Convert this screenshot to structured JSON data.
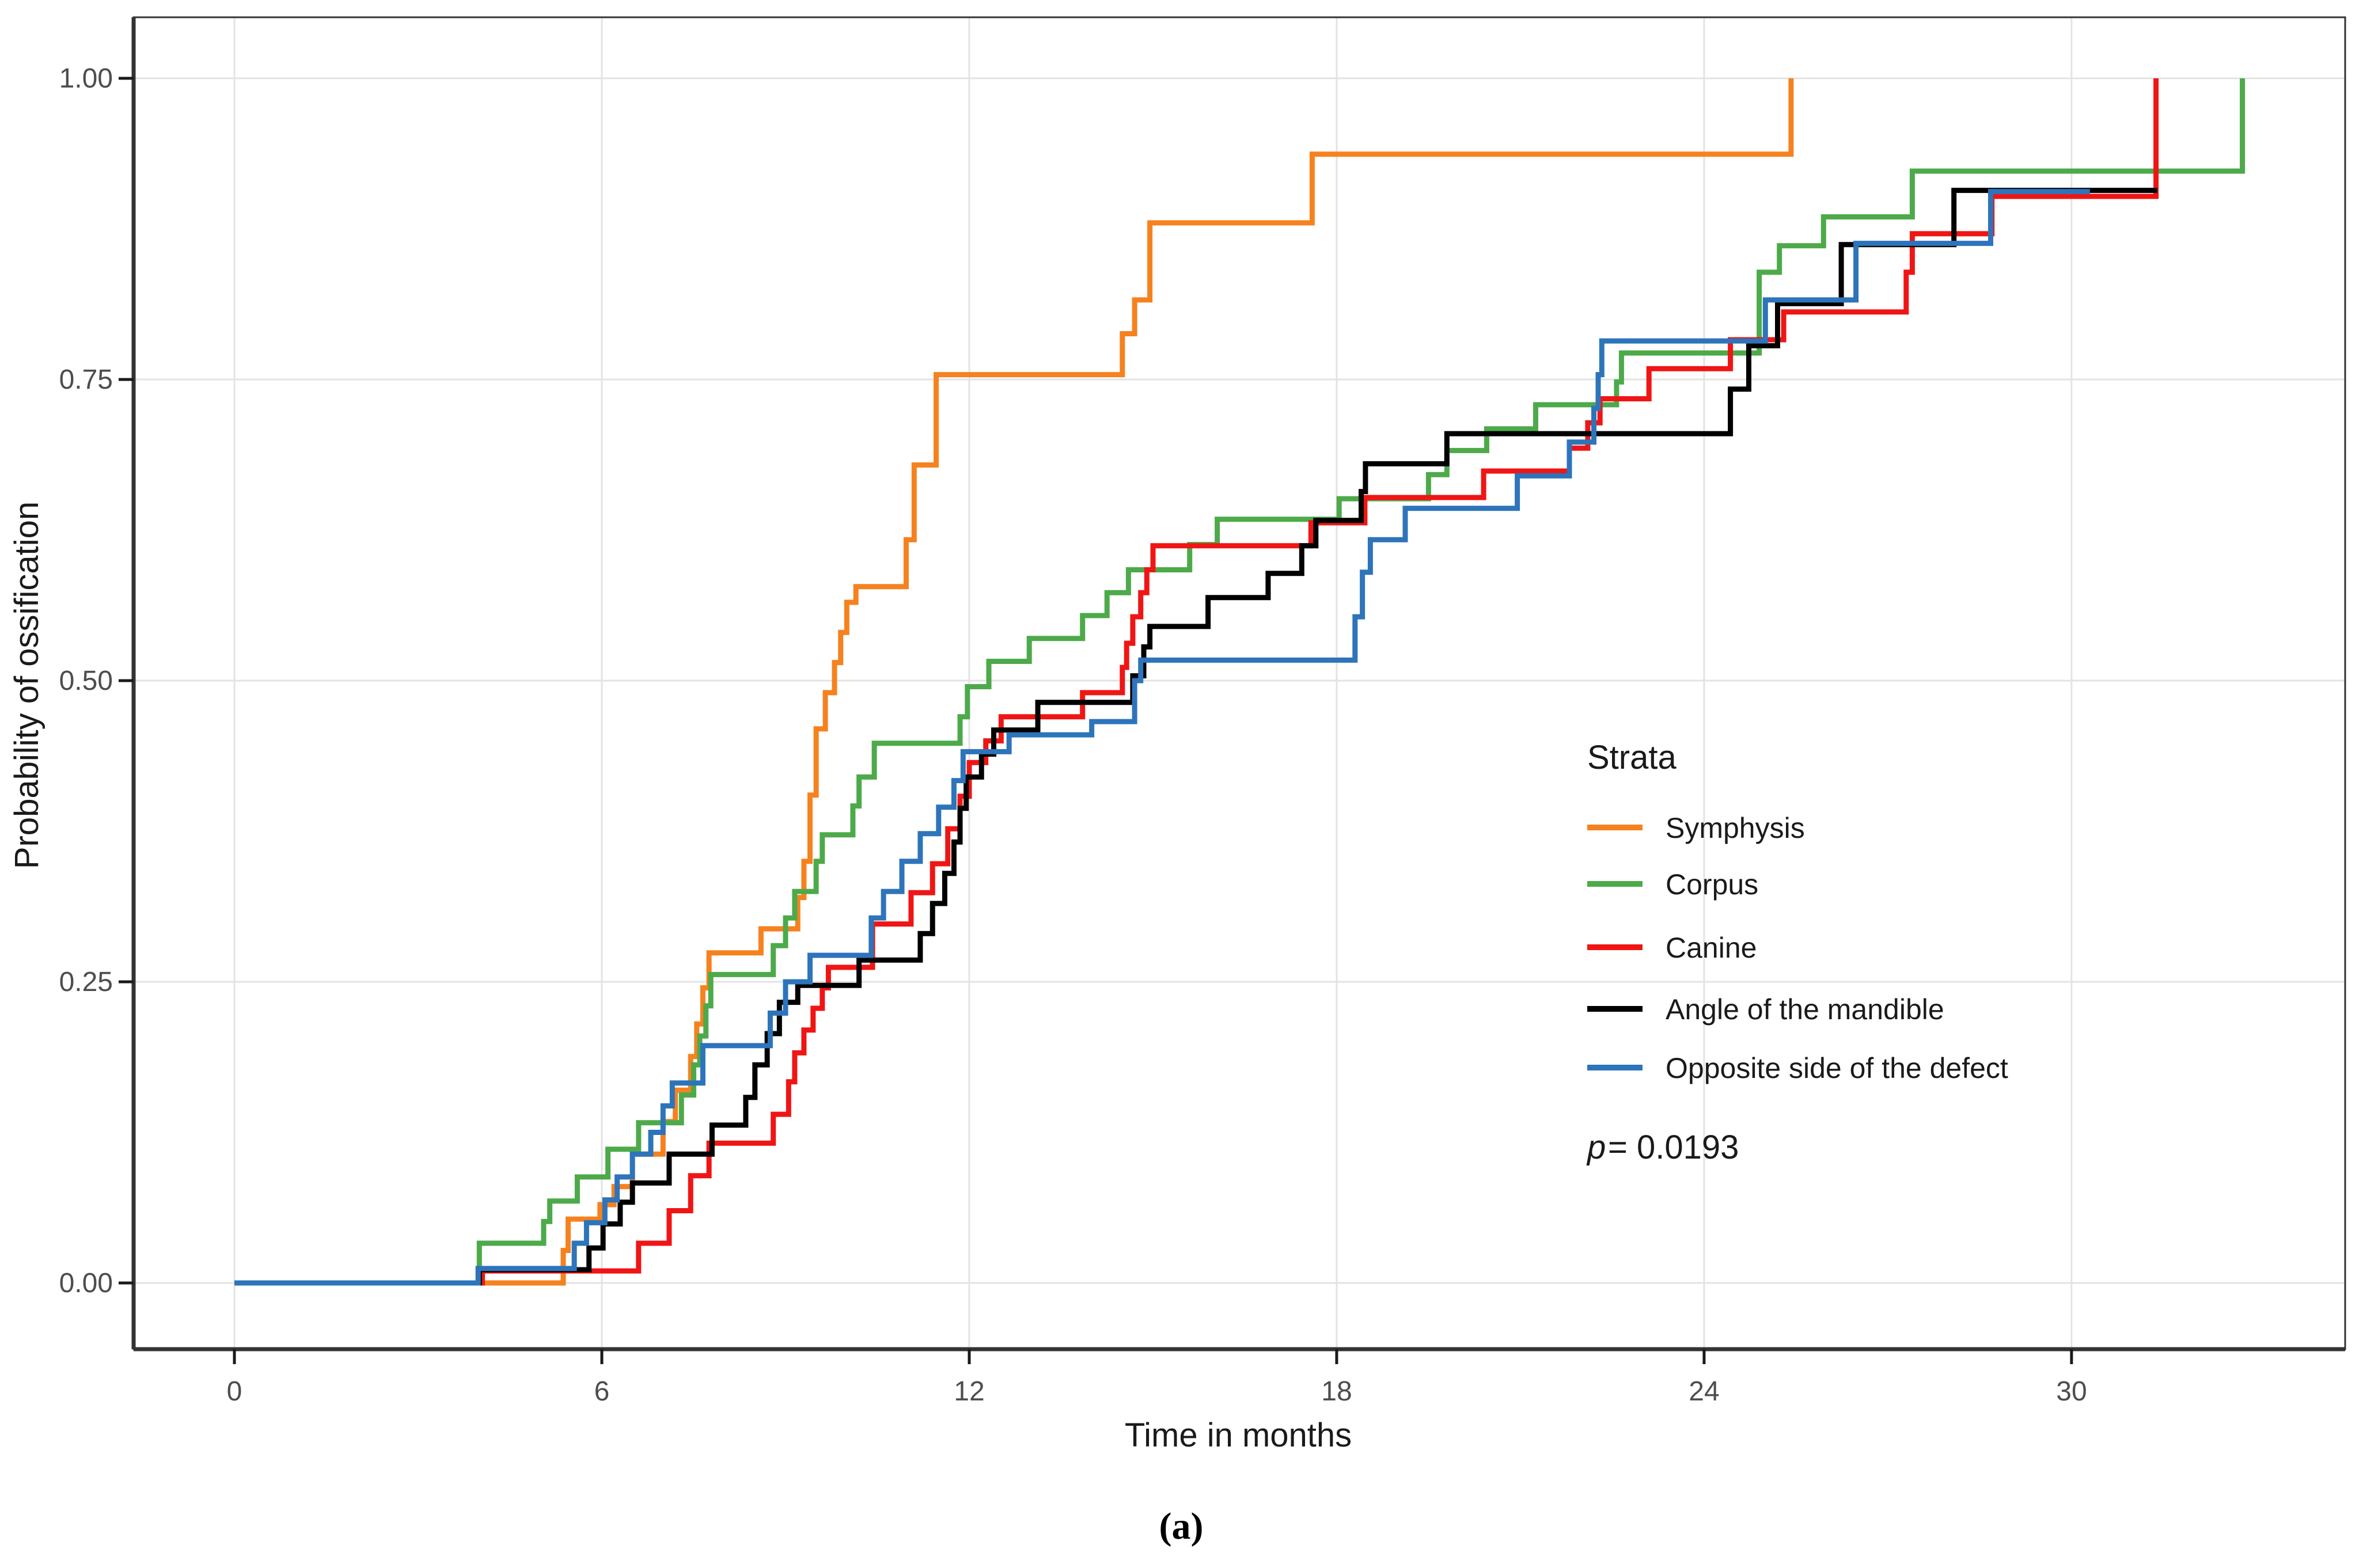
{
  "chart_data": {
    "type": "line",
    "subtype": "kaplan-meier-step",
    "title": "",
    "xlabel": "Time in months",
    "ylabel": "Probability of ossification",
    "xlim": [
      0,
      34.5
    ],
    "ylim": [
      0,
      1.0
    ],
    "x_ticks": [
      "0",
      "6",
      "12",
      "18",
      "24",
      "30"
    ],
    "x_tick_values": [
      0,
      6,
      12,
      18,
      24,
      30
    ],
    "y_ticks": [
      "0.00",
      "0.25",
      "0.50",
      "0.75",
      "1.00"
    ],
    "y_tick_values": [
      0,
      0.25,
      0.5,
      0.75,
      1.0
    ],
    "grid": true,
    "legend_position": "right-center-inside",
    "legend_title": "Strata",
    "p_italic": "p",
    "p_rest": " = 0.0193",
    "p_value_text": "p = 0.0193",
    "caption": "(a)",
    "colors": {
      "symphysis": "#F5821F",
      "corpus": "#4DAA4A",
      "canine": "#F01515",
      "angle": "#000000",
      "opposite": "#2D74BB",
      "grid": "#E3E3E3",
      "axis": "#333333",
      "tick_text": "#4D4D4D"
    },
    "series": [
      {
        "name": "Symphysis",
        "color": "#F5821F",
        "end": 25.42,
        "points": [
          [
            0,
            0
          ],
          [
            5.37,
            0.027
          ],
          [
            5.45,
            0.053
          ],
          [
            5.97,
            0.065
          ],
          [
            6.2,
            0.08
          ],
          [
            6.5,
            0.107
          ],
          [
            7.0,
            0.134
          ],
          [
            7.2,
            0.16
          ],
          [
            7.45,
            0.188
          ],
          [
            7.55,
            0.215
          ],
          [
            7.65,
            0.245
          ],
          [
            7.75,
            0.274
          ],
          [
            8.6,
            0.294
          ],
          [
            9.2,
            0.32
          ],
          [
            9.3,
            0.35
          ],
          [
            9.4,
            0.405
          ],
          [
            9.5,
            0.46
          ],
          [
            9.65,
            0.49
          ],
          [
            9.8,
            0.515
          ],
          [
            9.9,
            0.54
          ],
          [
            10.0,
            0.565
          ],
          [
            10.15,
            0.578
          ],
          [
            10.97,
            0.617
          ],
          [
            11.1,
            0.679
          ],
          [
            11.46,
            0.754
          ],
          [
            14.5,
            0.788
          ],
          [
            14.7,
            0.816
          ],
          [
            14.95,
            0.88
          ],
          [
            17.6,
            0.937
          ],
          [
            25.42,
            1.0
          ]
        ]
      },
      {
        "name": "Corpus",
        "color": "#4DAA4A",
        "end": 32.79,
        "points": [
          [
            0,
            0
          ],
          [
            4.0,
            0.033
          ],
          [
            5.05,
            0.051
          ],
          [
            5.15,
            0.068
          ],
          [
            5.6,
            0.088
          ],
          [
            6.1,
            0.111
          ],
          [
            6.6,
            0.133
          ],
          [
            7.3,
            0.156
          ],
          [
            7.5,
            0.181
          ],
          [
            7.6,
            0.205
          ],
          [
            7.7,
            0.23
          ],
          [
            7.78,
            0.256
          ],
          [
            8.8,
            0.28
          ],
          [
            9.0,
            0.303
          ],
          [
            9.15,
            0.325
          ],
          [
            9.5,
            0.35
          ],
          [
            9.6,
            0.372
          ],
          [
            10.1,
            0.396
          ],
          [
            10.2,
            0.42
          ],
          [
            10.45,
            0.448
          ],
          [
            11.85,
            0.47
          ],
          [
            11.97,
            0.495
          ],
          [
            12.32,
            0.516
          ],
          [
            12.98,
            0.535
          ],
          [
            13.85,
            0.554
          ],
          [
            14.25,
            0.573
          ],
          [
            14.6,
            0.592
          ],
          [
            15.6,
            0.613
          ],
          [
            16.05,
            0.634
          ],
          [
            18.04,
            0.651
          ],
          [
            19.5,
            0.671
          ],
          [
            19.8,
            0.691
          ],
          [
            20.45,
            0.709
          ],
          [
            21.25,
            0.729
          ],
          [
            22.57,
            0.748
          ],
          [
            22.65,
            0.772
          ],
          [
            24.9,
            0.839
          ],
          [
            25.23,
            0.861
          ],
          [
            25.95,
            0.885
          ],
          [
            27.4,
            0.923
          ],
          [
            32.79,
            1.0
          ]
        ]
      },
      {
        "name": "Canine",
        "color": "#F01515",
        "end": 31.38,
        "points": [
          [
            0,
            0
          ],
          [
            4.05,
            0.01
          ],
          [
            6.6,
            0.033
          ],
          [
            7.1,
            0.06
          ],
          [
            7.45,
            0.089
          ],
          [
            7.75,
            0.116
          ],
          [
            8.8,
            0.14
          ],
          [
            9.05,
            0.167
          ],
          [
            9.15,
            0.191
          ],
          [
            9.3,
            0.21
          ],
          [
            9.45,
            0.228
          ],
          [
            9.6,
            0.245
          ],
          [
            9.7,
            0.262
          ],
          [
            10.42,
            0.298
          ],
          [
            11.05,
            0.324
          ],
          [
            11.4,
            0.348
          ],
          [
            11.65,
            0.377
          ],
          [
            11.85,
            0.404
          ],
          [
            12.0,
            0.432
          ],
          [
            12.27,
            0.45
          ],
          [
            12.52,
            0.47
          ],
          [
            13.85,
            0.49
          ],
          [
            14.5,
            0.511
          ],
          [
            14.57,
            0.531
          ],
          [
            14.67,
            0.553
          ],
          [
            14.8,
            0.573
          ],
          [
            14.9,
            0.592
          ],
          [
            15.0,
            0.612
          ],
          [
            17.58,
            0.631
          ],
          [
            18.46,
            0.652
          ],
          [
            20.4,
            0.674
          ],
          [
            21.8,
            0.693
          ],
          [
            22.1,
            0.714
          ],
          [
            22.3,
            0.734
          ],
          [
            23.1,
            0.759
          ],
          [
            24.43,
            0.783
          ],
          [
            25.3,
            0.806
          ],
          [
            27.3,
            0.839
          ],
          [
            27.4,
            0.871
          ],
          [
            28.7,
            0.902
          ],
          [
            31.38,
            1.0
          ]
        ]
      },
      {
        "name": "Angle of the mandible",
        "color": "#000000",
        "end": 31.4,
        "points": [
          [
            0,
            0
          ],
          [
            4.0,
            0.011
          ],
          [
            5.79,
            0.029
          ],
          [
            6.02,
            0.049
          ],
          [
            6.3,
            0.067
          ],
          [
            6.5,
            0.083
          ],
          [
            7.1,
            0.107
          ],
          [
            7.8,
            0.131
          ],
          [
            8.35,
            0.154
          ],
          [
            8.5,
            0.181
          ],
          [
            8.7,
            0.207
          ],
          [
            8.9,
            0.233
          ],
          [
            9.2,
            0.247
          ],
          [
            10.2,
            0.268
          ],
          [
            11.2,
            0.29
          ],
          [
            11.4,
            0.315
          ],
          [
            11.6,
            0.34
          ],
          [
            11.75,
            0.366
          ],
          [
            11.85,
            0.394
          ],
          [
            11.95,
            0.42
          ],
          [
            12.2,
            0.439
          ],
          [
            12.4,
            0.459
          ],
          [
            13.12,
            0.482
          ],
          [
            14.67,
            0.504
          ],
          [
            14.85,
            0.528
          ],
          [
            14.95,
            0.545
          ],
          [
            15.9,
            0.569
          ],
          [
            16.88,
            0.589
          ],
          [
            17.43,
            0.612
          ],
          [
            17.66,
            0.633
          ],
          [
            18.4,
            0.657
          ],
          [
            18.47,
            0.68
          ],
          [
            19.8,
            0.705
          ],
          [
            24.43,
            0.742
          ],
          [
            24.73,
            0.778
          ],
          [
            25.2,
            0.813
          ],
          [
            26.24,
            0.862
          ],
          [
            28.08,
            0.907
          ]
        ]
      },
      {
        "name": "Opposite side of the defect",
        "color": "#2D74BB",
        "end": 30.3,
        "points": [
          [
            0,
            0
          ],
          [
            3.98,
            0.012
          ],
          [
            5.55,
            0.033
          ],
          [
            5.75,
            0.05
          ],
          [
            6.05,
            0.069
          ],
          [
            6.25,
            0.088
          ],
          [
            6.5,
            0.107
          ],
          [
            6.8,
            0.125
          ],
          [
            7.0,
            0.147
          ],
          [
            7.15,
            0.166
          ],
          [
            7.65,
            0.197
          ],
          [
            8.75,
            0.224
          ],
          [
            9.0,
            0.25
          ],
          [
            9.4,
            0.272
          ],
          [
            10.4,
            0.303
          ],
          [
            10.6,
            0.325
          ],
          [
            10.9,
            0.35
          ],
          [
            11.2,
            0.373
          ],
          [
            11.5,
            0.395
          ],
          [
            11.75,
            0.417
          ],
          [
            11.9,
            0.441
          ],
          [
            12.65,
            0.455
          ],
          [
            14.0,
            0.466
          ],
          [
            14.7,
            0.5
          ],
          [
            14.8,
            0.517
          ],
          [
            18.3,
            0.553
          ],
          [
            18.42,
            0.59
          ],
          [
            18.55,
            0.617
          ],
          [
            19.12,
            0.643
          ],
          [
            20.95,
            0.67
          ],
          [
            21.8,
            0.698
          ],
          [
            22.2,
            0.726
          ],
          [
            22.27,
            0.754
          ],
          [
            22.33,
            0.782
          ],
          [
            25.0,
            0.816
          ],
          [
            26.48,
            0.863
          ],
          [
            28.68,
            0.906
          ]
        ]
      }
    ]
  }
}
